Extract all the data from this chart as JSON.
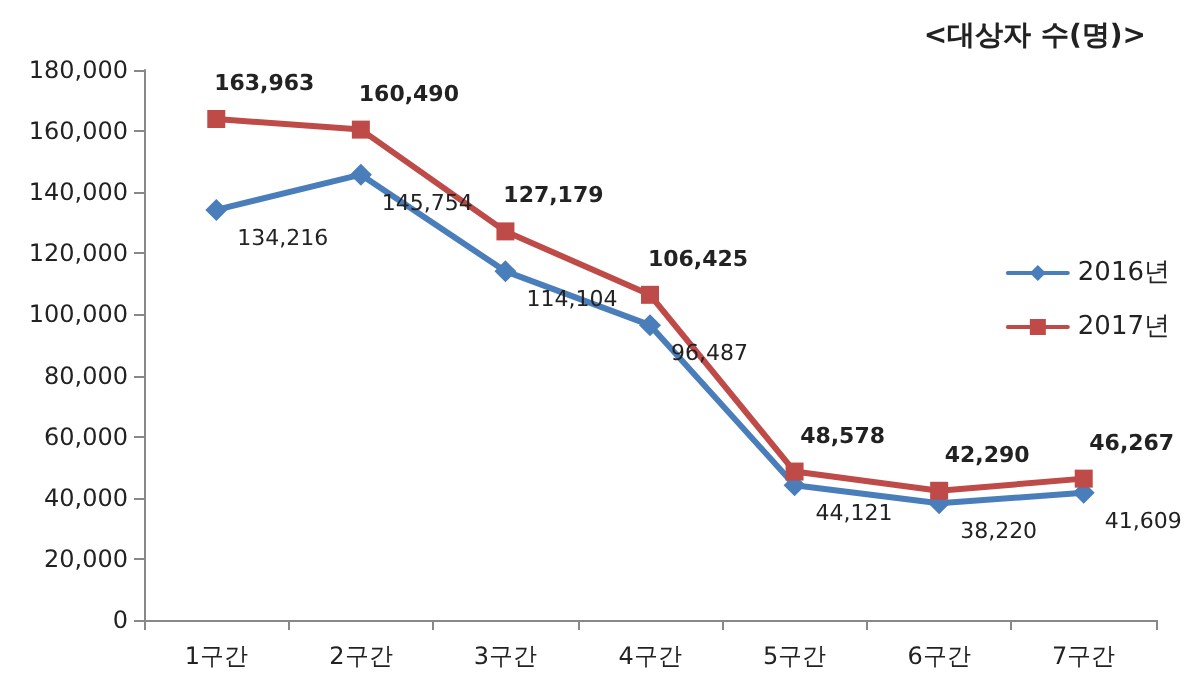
{
  "chart_data": {
    "type": "line",
    "title": "<대상자 수(명)>",
    "categories": [
      "1구간",
      "2구간",
      "3구간",
      "4구간",
      "5구간",
      "6구간",
      "7구간"
    ],
    "series": [
      {
        "name": "2016년",
        "color": "#4a7ebb",
        "marker": "diamond",
        "values": [
          134216,
          145754,
          114104,
          96487,
          44121,
          38220,
          41609
        ],
        "value_labels": [
          "134,216",
          "145,754",
          "114,104",
          "96,487",
          "44,121",
          "38,220",
          "41,609"
        ]
      },
      {
        "name": "2017년",
        "color": "#be4b48",
        "marker": "square",
        "values": [
          163963,
          160490,
          127179,
          106425,
          48578,
          42290,
          46267
        ],
        "value_labels": [
          "163,963",
          "160,490",
          "127,179",
          "106,425",
          "48,578",
          "42,290",
          "46,267"
        ]
      }
    ],
    "ylim": [
      0,
      180000
    ],
    "yticks": [
      {
        "value": 0,
        "label": "0"
      },
      {
        "value": 20000,
        "label": "20,000"
      },
      {
        "value": 40000,
        "label": "40,000"
      },
      {
        "value": 60000,
        "label": "60,000"
      },
      {
        "value": 80000,
        "label": "80,000"
      },
      {
        "value": 100000,
        "label": "100,000"
      },
      {
        "value": 120000,
        "label": "120,000"
      },
      {
        "value": 140000,
        "label": "140,000"
      },
      {
        "value": 160000,
        "label": "160,000"
      },
      {
        "value": 180000,
        "label": "180,000"
      }
    ],
    "grid": false,
    "legend": "right",
    "line_style": "solid"
  }
}
